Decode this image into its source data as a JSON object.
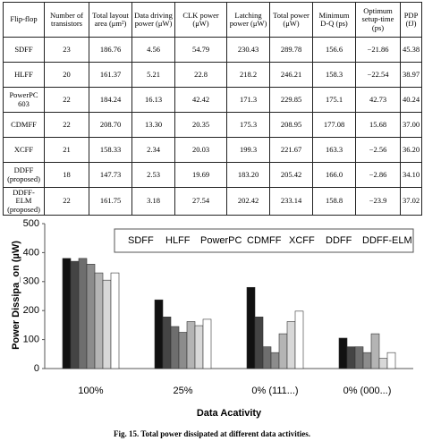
{
  "table": {
    "header": [
      "Flip-flop",
      "Number of transistors",
      "Total layout area (μm²)",
      "Data driving power (μW)",
      "CLK power (μW)",
      "Latching power (μW)",
      "Total power (μW)",
      "Minimum D-Q (ps)",
      "Optimum setup-time (ps)",
      "PDP (fJ)"
    ],
    "rows": [
      [
        "SDFF",
        "23",
        "186.76",
        "4.56",
        "54.79",
        "230.43",
        "289.78",
        "156.6",
        "−21.86",
        "45.38"
      ],
      [
        "HLFF",
        "20",
        "161.37",
        "5.21",
        "22.8",
        "218.2",
        "246.21",
        "158.3",
        "−22.54",
        "38.97"
      ],
      [
        "PowerPC 603",
        "22",
        "184.24",
        "16.13",
        "42.42",
        "171.3",
        "229.85",
        "175.1",
        "42.73",
        "40.24"
      ],
      [
        "CDMFF",
        "22",
        "208.70",
        "13.30",
        "20.35",
        "175.3",
        "208.95",
        "177.08",
        "15.68",
        "37.00"
      ],
      [
        "XCFF",
        "21",
        "158.33",
        "2.34",
        "20.03",
        "199.3",
        "221.67",
        "163.3",
        "−2.56",
        "36.20"
      ],
      [
        "DDFF (proposed)",
        "18",
        "147.73",
        "2.53",
        "19.69",
        "183.20",
        "205.42",
        "166.0",
        "−2.86",
        "34.10"
      ],
      [
        "DDFF-ELM (proposed)",
        "22",
        "161.75",
        "3.18",
        "27.54",
        "202.42",
        "233.14",
        "158.8",
        "−23.9",
        "37.02"
      ]
    ]
  },
  "chart_data": {
    "type": "bar",
    "x_label": "Data Acativity",
    "y_label": "Power Dissipa_on (µW)",
    "categories": [
      "100%",
      "25%",
      "0% (111...)",
      "0% (000...)"
    ],
    "series": [
      {
        "name": "SDFF",
        "color": "#111111",
        "values": [
          380,
          237,
          280,
          105
        ]
      },
      {
        "name": "HLFF",
        "color": "#444444",
        "values": [
          370,
          178,
          178,
          75
        ]
      },
      {
        "name": "PowerPC",
        "color": "#6e6e6e",
        "values": [
          380,
          145,
          75,
          75
        ]
      },
      {
        "name": "CDMFF",
        "color": "#8c8c8c",
        "values": [
          360,
          125,
          55,
          55
        ]
      },
      {
        "name": "XCFF",
        "color": "#b4b4b4",
        "values": [
          330,
          162,
          120,
          120
        ]
      },
      {
        "name": "DDFF",
        "color": "#d8d8d8",
        "values": [
          305,
          148,
          162,
          35
        ]
      },
      {
        "name": "DDFF-ELM",
        "color": "#ffffff",
        "values": [
          330,
          170,
          198,
          55
        ]
      }
    ],
    "ylim": [
      0,
      500
    ],
    "yticks": [
      0,
      100,
      200,
      300,
      400,
      500
    ]
  },
  "caption": "Fig. 15.    Total power dissipated at different data activities."
}
